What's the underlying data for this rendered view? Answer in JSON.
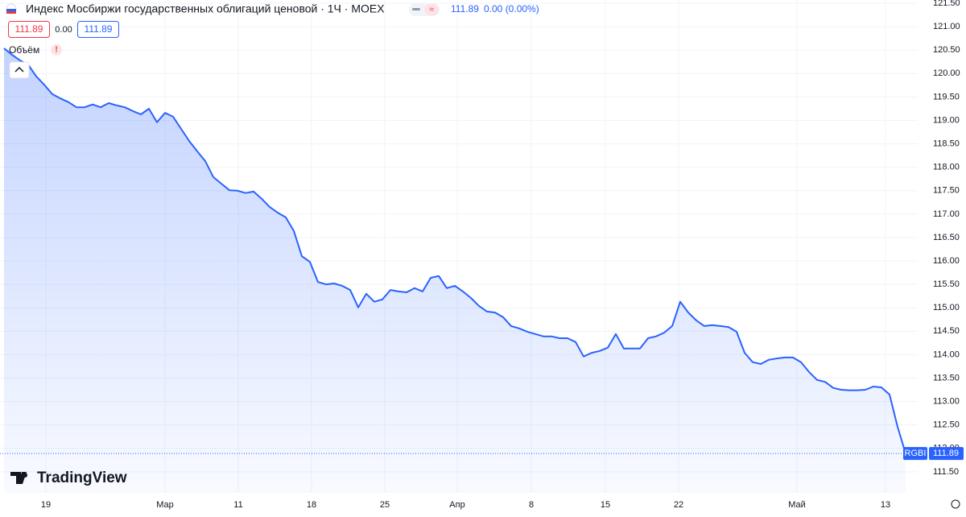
{
  "chart_data": {
    "type": "area",
    "title": "Индекс Мосбиржи государственных облигаций ценовой · 1Ч · MOEX",
    "price_label": "111.89",
    "change_label": "0.00 (0.00%)",
    "bid": "111.89",
    "spread": "0.00",
    "ask": "111.89",
    "volume_label": "Объём",
    "symbol": "RGBI",
    "brand": "TradingView",
    "color": "#2962ff",
    "x": [
      0,
      1,
      2,
      3,
      4,
      5,
      6,
      7,
      8,
      9,
      10,
      11,
      12,
      13,
      14,
      15,
      16,
      17,
      18,
      19,
      20,
      21,
      22,
      23,
      24,
      25,
      26,
      27,
      28,
      29,
      30,
      31,
      32,
      33,
      34,
      35,
      36,
      37,
      38,
      39,
      40,
      41,
      42,
      43,
      44,
      45,
      46,
      47,
      48,
      49,
      50,
      51,
      52,
      53,
      54,
      55,
      56,
      57,
      58,
      59,
      60,
      61,
      62,
      63,
      64,
      65,
      66,
      67,
      68,
      69,
      70,
      71,
      72,
      73,
      74,
      75,
      76,
      77,
      78,
      79,
      80,
      81,
      82,
      83,
      84,
      85,
      86,
      87,
      88,
      89,
      90,
      91,
      92,
      93,
      94,
      95,
      96,
      97,
      98,
      99,
      100,
      101,
      102,
      103,
      104,
      105,
      106,
      107,
      108,
      109,
      110,
      111,
      112
    ],
    "values": [
      120.54,
      120.4,
      120.28,
      120.19,
      119.94,
      119.76,
      119.56,
      119.47,
      119.39,
      119.28,
      119.28,
      119.34,
      119.28,
      119.37,
      119.32,
      119.28,
      119.2,
      119.13,
      119.25,
      118.96,
      119.16,
      119.08,
      118.82,
      118.56,
      118.34,
      118.13,
      117.79,
      117.65,
      117.51,
      117.5,
      117.45,
      117.48,
      117.33,
      117.15,
      117.03,
      116.93,
      116.64,
      116.1,
      115.98,
      115.55,
      115.5,
      115.52,
      115.47,
      115.38,
      115.01,
      115.3,
      115.13,
      115.18,
      115.38,
      115.35,
      115.33,
      115.42,
      115.35,
      115.64,
      115.68,
      115.42,
      115.47,
      115.35,
      115.21,
      115.04,
      114.92,
      114.9,
      114.8,
      114.61,
      114.56,
      114.49,
      114.44,
      114.39,
      114.39,
      114.35,
      114.35,
      114.27,
      113.96,
      114.04,
      114.08,
      114.15,
      114.44,
      114.13,
      114.13,
      114.13,
      114.35,
      114.39,
      114.47,
      114.61,
      115.13,
      114.9,
      114.73,
      114.61,
      114.63,
      114.61,
      114.59,
      114.49,
      114.04,
      113.84,
      113.8,
      113.89,
      113.92,
      113.94,
      113.94,
      113.84,
      113.63,
      113.46,
      113.42,
      113.29,
      113.25,
      113.24,
      113.24,
      113.25,
      113.32,
      113.3,
      113.15,
      112.46,
      111.89
    ],
    "xlim": [
      -0.5,
      113.5
    ],
    "xticks": [
      {
        "value": 5.2,
        "label": "19"
      },
      {
        "value": 20,
        "label": "Мар"
      },
      {
        "value": 29.1,
        "label": "11"
      },
      {
        "value": 38.2,
        "label": "18"
      },
      {
        "value": 47.3,
        "label": "25"
      },
      {
        "value": 56.3,
        "label": "Апр"
      },
      {
        "value": 65.5,
        "label": "8"
      },
      {
        "value": 74.7,
        "label": "15"
      },
      {
        "value": 83.8,
        "label": "22"
      },
      {
        "value": 98.5,
        "label": "Май"
      },
      {
        "value": 109.5,
        "label": "13"
      }
    ],
    "ylim": [
      110.81,
      121.57
    ],
    "yticks": [
      {
        "value": 111.5,
        "label": "111.50"
      },
      {
        "value": 112,
        "label": "112.00"
      },
      {
        "value": 112.5,
        "label": "112.50"
      },
      {
        "value": 113,
        "label": "113.00"
      },
      {
        "value": 113.5,
        "label": "113.50"
      },
      {
        "value": 114,
        "label": "114.00"
      },
      {
        "value": 114.5,
        "label": "114.50"
      },
      {
        "value": 115,
        "label": "115.00"
      },
      {
        "value": 115.5,
        "label": "115.50"
      },
      {
        "value": 116,
        "label": "116.00"
      },
      {
        "value": 116.5,
        "label": "116.50"
      },
      {
        "value": 117,
        "label": "117.00"
      },
      {
        "value": 117.5,
        "label": "117.50"
      },
      {
        "value": 118,
        "label": "118.00"
      },
      {
        "value": 118.5,
        "label": "118.50"
      },
      {
        "value": 119,
        "label": "119.00"
      },
      {
        "value": 119.5,
        "label": "119.50"
      },
      {
        "value": 120,
        "label": "120.00"
      },
      {
        "value": 120.5,
        "label": "120.50"
      },
      {
        "value": 121,
        "label": "121.00"
      },
      {
        "value": 121.5,
        "label": "121.50"
      }
    ],
    "grid": true
  }
}
